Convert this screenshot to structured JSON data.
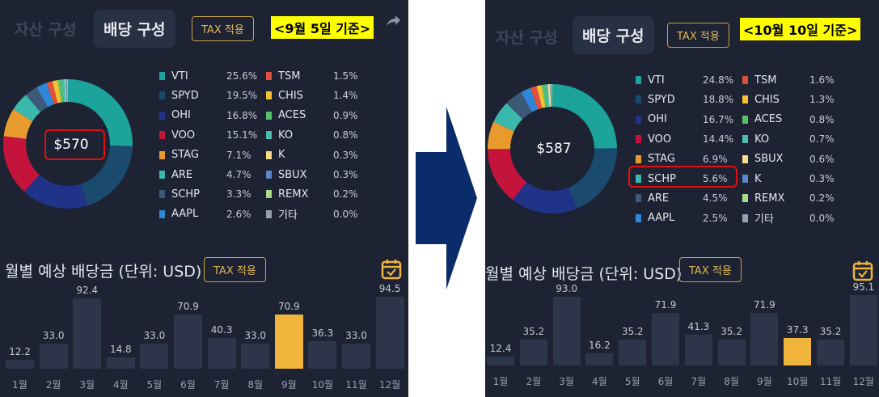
{
  "left": {
    "tabs": {
      "asset": "자산 구성",
      "dividend": "배당 구성"
    },
    "tax_button": "TAX 적용",
    "date_label": "<9월 5일 기준>",
    "center_value": "$570",
    "legend": [
      {
        "name": "VTI",
        "pct": "25.6%",
        "color": "#1ba39c"
      },
      {
        "name": "SPYD",
        "pct": "19.5%",
        "color": "#1a4a6e"
      },
      {
        "name": "OHI",
        "pct": "16.8%",
        "color": "#1f3488"
      },
      {
        "name": "VOO",
        "pct": "15.1%",
        "color": "#c4143c"
      },
      {
        "name": "STAG",
        "pct": "7.1%",
        "color": "#e89b2c"
      },
      {
        "name": "ARE",
        "pct": "4.7%",
        "color": "#3ab8ac"
      },
      {
        "name": "SCHP",
        "pct": "3.3%",
        "color": "#3c5a78"
      },
      {
        "name": "AAPL",
        "pct": "2.6%",
        "color": "#2f86d6"
      },
      {
        "name": "TSM",
        "pct": "1.5%",
        "color": "#e0503c"
      },
      {
        "name": "CHIS",
        "pct": "1.4%",
        "color": "#f2c233"
      },
      {
        "name": "ACES",
        "pct": "0.9%",
        "color": "#57c06a"
      },
      {
        "name": "KO",
        "pct": "0.8%",
        "color": "#48bfae"
      },
      {
        "name": "K",
        "pct": "0.3%",
        "color": "#f7dc8a"
      },
      {
        "name": "SBUX",
        "pct": "0.3%",
        "color": "#5f86cc"
      },
      {
        "name": "REMX",
        "pct": "0.2%",
        "color": "#a8dc86"
      },
      {
        "name": "기타",
        "pct": "0.0%",
        "color": "#9aa0a8"
      }
    ],
    "section_title": "월별 예상 배당금 (단위: USD)",
    "section_tax_button": "TAX 적용",
    "chart_data": {
      "type": "bar",
      "categories": [
        "1월",
        "2월",
        "3월",
        "4월",
        "5월",
        "6월",
        "7월",
        "8월",
        "9월",
        "10월",
        "11월",
        "12월"
      ],
      "values": [
        12.2,
        33.0,
        92.4,
        14.8,
        33.0,
        70.9,
        40.3,
        33.0,
        70.9,
        36.3,
        33.0,
        94.5
      ],
      "labels": [
        "12.2",
        "33.0",
        "92.4",
        "14.8",
        "33.0",
        "70.9",
        "40.3",
        "33.0",
        "70.9",
        "36.3",
        "33.0",
        "94.5"
      ],
      "highlight_index": 8
    }
  },
  "right": {
    "tabs": {
      "asset": "자산 구성",
      "dividend": "배당 구성"
    },
    "tax_button": "TAX 적용",
    "date_label": "<10월 10일 기준>",
    "center_value": "$587",
    "legend": [
      {
        "name": "VTI",
        "pct": "24.8%",
        "color": "#1ba39c"
      },
      {
        "name": "SPYD",
        "pct": "18.8%",
        "color": "#1a4a6e"
      },
      {
        "name": "OHI",
        "pct": "16.7%",
        "color": "#1f3488"
      },
      {
        "name": "VOO",
        "pct": "14.4%",
        "color": "#c4143c"
      },
      {
        "name": "STAG",
        "pct": "6.9%",
        "color": "#e89b2c"
      },
      {
        "name": "SCHP",
        "pct": "5.6%",
        "color": "#3ab8ac"
      },
      {
        "name": "ARE",
        "pct": "4.5%",
        "color": "#3c5a78"
      },
      {
        "name": "AAPL",
        "pct": "2.5%",
        "color": "#2f86d6"
      },
      {
        "name": "TSM",
        "pct": "1.6%",
        "color": "#e0503c"
      },
      {
        "name": "CHIS",
        "pct": "1.3%",
        "color": "#f2c233"
      },
      {
        "name": "ACES",
        "pct": "0.8%",
        "color": "#57c06a"
      },
      {
        "name": "KO",
        "pct": "0.7%",
        "color": "#48bfae"
      },
      {
        "name": "SBUX",
        "pct": "0.6%",
        "color": "#f7dc8a"
      },
      {
        "name": "K",
        "pct": "0.3%",
        "color": "#5f86cc"
      },
      {
        "name": "REMX",
        "pct": "0.2%",
        "color": "#a8dc86"
      },
      {
        "name": "기타",
        "pct": "0.0%",
        "color": "#9aa0a8"
      }
    ],
    "section_title": "월별 예상 배당금 (단위: USD)",
    "section_tax_button": "TAX 적용",
    "chart_data": {
      "type": "bar",
      "categories": [
        "1월",
        "2월",
        "3월",
        "4월",
        "5월",
        "6월",
        "7월",
        "8월",
        "9월",
        "10월",
        "11월",
        "12월"
      ],
      "values": [
        12.4,
        35.2,
        93.0,
        16.2,
        35.2,
        71.9,
        41.3,
        35.2,
        71.9,
        37.3,
        35.2,
        95.1
      ],
      "labels": [
        "12.4",
        "35.2",
        "93.0",
        "16.2",
        "35.2",
        "71.9",
        "41.3",
        "35.2",
        "71.9",
        "37.3",
        "35.2",
        "95.1"
      ],
      "highlight_index": 9
    }
  },
  "colors": {
    "accent": "#f0b43a",
    "panel_bg": "#1d2333",
    "bar": "#2c3549",
    "arrow": "#0a2c6a",
    "highlight": "#e01010"
  }
}
